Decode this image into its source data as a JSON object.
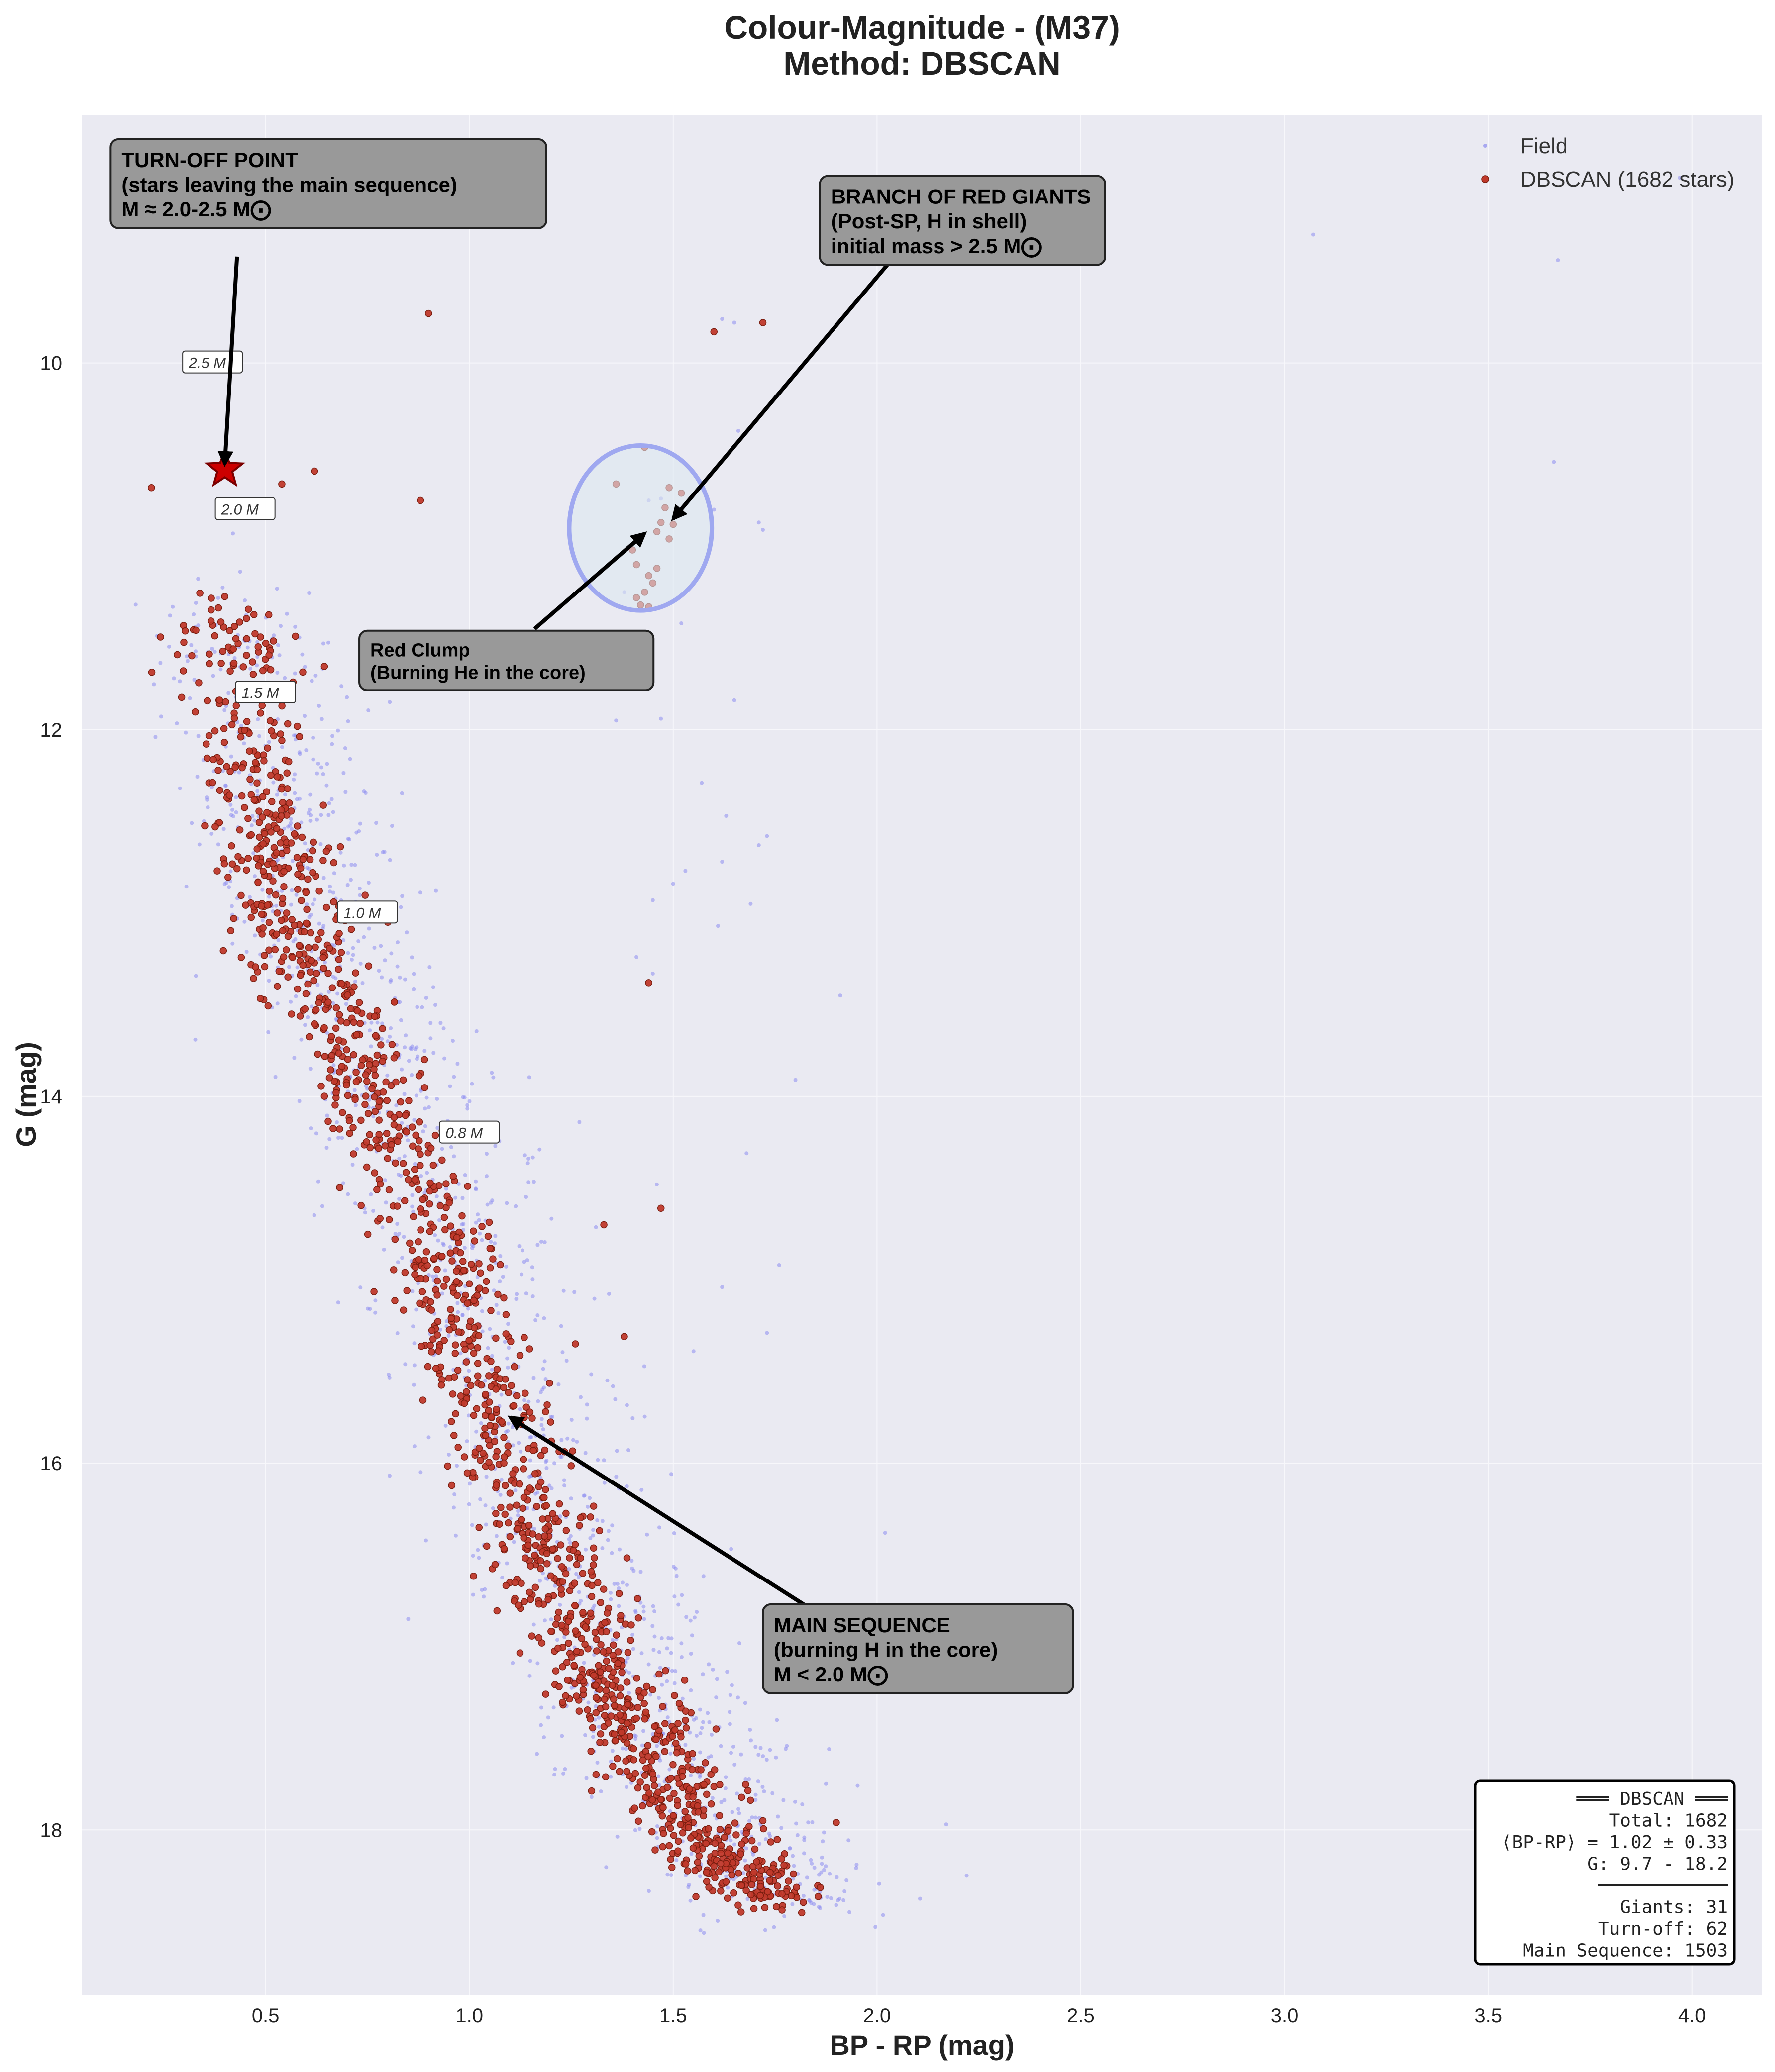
{
  "chart_data": {
    "type": "scatter",
    "title": "Colour-Magnitude - (M37)",
    "subtitle": "Method: DBSCAN",
    "xlabel": "BP - RP (mag)",
    "ylabel": "G (mag)",
    "xlim": [
      0.05,
      4.17
    ],
    "ylim": [
      18.9,
      8.65
    ],
    "y_inverted": true,
    "grid": true,
    "legend_position": "top-right",
    "x_ticks": [
      "0.5",
      "1.0",
      "1.5",
      "2.0",
      "2.5",
      "3.0",
      "3.5",
      "4.0"
    ],
    "y_ticks": [
      "10",
      "12",
      "14",
      "16",
      "18"
    ],
    "series": [
      {
        "name": "Field",
        "color": "#8c8cf0",
        "scattered_points": [
          [
            3.97,
            8.99
          ],
          [
            3.07,
            9.3
          ],
          [
            3.67,
            9.44
          ],
          [
            1.65,
            9.78
          ],
          [
            1.62,
            9.76
          ],
          [
            3.66,
            10.54
          ],
          [
            1.6,
            10.8
          ],
          [
            1.66,
            10.37
          ],
          [
            1.47,
            10.74
          ],
          [
            1.44,
            10.75
          ],
          [
            1.38,
            11.25
          ],
          [
            1.72,
            10.91
          ],
          [
            1.71,
            10.87
          ],
          [
            0.23,
            12.04
          ],
          [
            0.29,
            12.32
          ],
          [
            0.42,
            10.93
          ],
          [
            0.59,
            11.59
          ],
          [
            1.36,
            11.95
          ],
          [
            1.65,
            11.84
          ],
          [
            1.52,
            11.42
          ],
          [
            1.47,
            11.94
          ],
          [
            1.57,
            12.29
          ],
          [
            1.63,
            12.47
          ],
          [
            1.73,
            12.58
          ],
          [
            1.71,
            12.63
          ],
          [
            1.53,
            12.77
          ],
          [
            1.62,
            12.72
          ],
          [
            1.45,
            12.93
          ],
          [
            1.41,
            13.24
          ],
          [
            1.69,
            12.95
          ],
          [
            1.61,
            13.07
          ],
          [
            1.5,
            12.84
          ],
          [
            1.91,
            13.45
          ],
          [
            1.8,
            13.91
          ],
          [
            1.45,
            13.33
          ],
          [
            0.82,
            13.78
          ],
          [
            0.55,
            13.35
          ],
          [
            0.65,
            14.28
          ],
          [
            0.85,
            16.85
          ],
          [
            1.68,
            14.31
          ],
          [
            1.62,
            15.04
          ],
          [
            1.73,
            15.29
          ],
          [
            1.76,
            14.92
          ],
          [
            1.46,
            14.48
          ],
          [
            1.27,
            14.14
          ],
          [
            1.55,
            15.39
          ],
          [
            2.02,
            16.38
          ],
          [
            2.17,
            17.97
          ],
          [
            2.22,
            18.25
          ],
          [
            1.95,
            18.19
          ],
          [
            1.82,
            18.36
          ],
          [
            1.9,
            18.41
          ]
        ],
        "dense_band": {
          "description": "main sequence band centre line (BP-RP, G)",
          "centre": [
            [
              0.4,
              11.3
            ],
            [
              0.48,
              12.4
            ],
            [
              0.58,
              13.2
            ],
            [
              0.75,
              13.9
            ],
            [
              0.92,
              14.8
            ],
            [
              1.05,
              15.6
            ],
            [
              1.17,
              16.4
            ],
            [
              1.3,
              17.1
            ],
            [
              1.45,
              17.6
            ],
            [
              1.6,
              18.1
            ],
            [
              1.75,
              18.4
            ]
          ],
          "offset": 0.06,
          "spread": 0.13,
          "count": 1500
        }
      },
      {
        "name": "DBSCAN (1682 stars)",
        "color": "#c0392b",
        "count": 1682,
        "scattered_points": [
          [
            0.9,
            9.73
          ],
          [
            1.6,
            9.83
          ],
          [
            1.72,
            9.78
          ],
          [
            0.22,
            10.68
          ],
          [
            0.62,
            10.59
          ],
          [
            0.54,
            10.66
          ],
          [
            0.88,
            10.75
          ],
          [
            1.36,
            10.66
          ],
          [
            1.43,
            10.46
          ],
          [
            1.49,
            10.68
          ],
          [
            1.48,
            10.79
          ],
          [
            1.47,
            10.87
          ],
          [
            1.46,
            10.92
          ],
          [
            1.5,
            10.88
          ],
          [
            1.4,
            11.02
          ],
          [
            1.41,
            11.1
          ],
          [
            1.44,
            11.16
          ],
          [
            1.45,
            11.2
          ],
          [
            1.43,
            11.25
          ],
          [
            1.46,
            11.12
          ],
          [
            1.41,
            11.28
          ],
          [
            1.42,
            11.32
          ],
          [
            1.49,
            10.96
          ],
          [
            1.44,
            11.33
          ],
          [
            1.52,
            10.71
          ],
          [
            0.8,
            13.05
          ],
          [
            1.33,
            14.7
          ],
          [
            1.47,
            14.61
          ],
          [
            1.44,
            13.38
          ],
          [
            1.27,
            16.34
          ],
          [
            1.38,
            15.31
          ],
          [
            1.26,
            15.35
          ],
          [
            1.9,
            17.96
          ],
          [
            1.72,
            17.95
          ]
        ],
        "dense_band": {
          "description": "main sequence band centre line (BP-RP, G)",
          "centre": [
            [
              0.4,
              11.3
            ],
            [
              0.48,
              12.4
            ],
            [
              0.58,
              13.2
            ],
            [
              0.75,
              13.9
            ],
            [
              0.92,
              14.8
            ],
            [
              1.05,
              15.6
            ],
            [
              1.17,
              16.4
            ],
            [
              1.3,
              17.1
            ],
            [
              1.45,
              17.6
            ],
            [
              1.6,
              18.1
            ],
            [
              1.75,
              18.4
            ]
          ],
          "offset": 0.0,
          "spread": 0.07,
          "count": 1620
        }
      }
    ],
    "turnoff_marker": {
      "x": 0.4,
      "y": 10.58,
      "color": "#cc0000"
    },
    "red_clump_ellipse": {
      "cx": 1.42,
      "cy": 10.9,
      "rx": 0.175,
      "ry": 0.45
    },
    "mass_labels": [
      {
        "x": 0.37,
        "y": 10.0,
        "text": "2.5 M"
      },
      {
        "x": 0.45,
        "y": 10.8,
        "text": "2.0 M"
      },
      {
        "x": 0.5,
        "y": 11.8,
        "text": "1.5 M"
      },
      {
        "x": 0.75,
        "y": 13.0,
        "text": "1.0 M"
      },
      {
        "x": 1.0,
        "y": 14.2,
        "text": "0.8 M"
      }
    ],
    "annotations": [
      {
        "id": "turnoff",
        "lines": [
          "TURN-OFF POINT",
          "(stars leaving the main sequence)",
          "M ≈ 2.0-2.5 M⨀"
        ],
        "box_x": 0.12,
        "box_y": 8.78,
        "arrow_from": [
          0.43,
          9.42
        ],
        "arrow_to": [
          0.4,
          10.55
        ],
        "font_size": 42
      },
      {
        "id": "giants",
        "lines": [
          "BRANCH OF RED GIANTS",
          "(Post-SP, H in shell)",
          "initial mass > 2.5 M⨀"
        ],
        "box_x": 1.86,
        "box_y": 8.98,
        "arrow_from": [
          2.05,
          9.4
        ],
        "arrow_to": [
          1.5,
          10.85
        ],
        "font_size": 42
      },
      {
        "id": "clump",
        "lines": [
          "Red Clump",
          "(Burning He in the core)"
        ],
        "box_x": 0.73,
        "box_y": 11.46,
        "arrow_from": [
          1.16,
          11.45
        ],
        "arrow_to": [
          1.43,
          10.93
        ],
        "font_size": 38
      },
      {
        "id": "ms",
        "lines": [
          "MAIN SEQUENCE",
          "(burning H in the core)",
          "M < 2.0 M⨀"
        ],
        "box_x": 1.72,
        "box_y": 16.77,
        "arrow_from": [
          1.82,
          16.77
        ],
        "arrow_to": [
          1.1,
          15.75
        ],
        "font_size": 42
      }
    ],
    "stats_box": {
      "lines": [
        "═══ DBSCAN ═══",
        "Total: 1682",
        "⟨BP-RP⟩ = 1.02 ± 0.33",
        "G: 9.7 - 18.2",
        "────────────",
        "Giants: 31",
        "Turn-off: 62",
        "Main Sequence: 1503"
      ]
    },
    "colors": {
      "axes_bg": "#eaeaf2",
      "grid": "#f7f7fb",
      "field": "#8c8cf0",
      "member": "#c0392b",
      "member_edge": "#7a1e10",
      "ellipse": "#9fa8f0",
      "annotation_bg": "#999999"
    }
  }
}
